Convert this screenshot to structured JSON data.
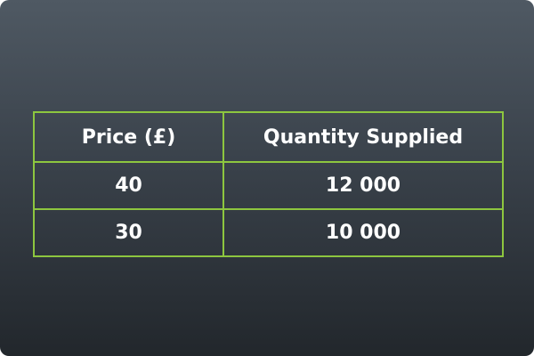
{
  "chart_data": {
    "type": "table",
    "columns": [
      "Price (£)",
      "Quantity Supplied"
    ],
    "rows": [
      [
        "40",
        "12 000"
      ],
      [
        "30",
        "10 000"
      ]
    ]
  },
  "colors": {
    "border": "#8dc63f",
    "text": "#ffffff",
    "background_top": "#4f5963",
    "background_bottom": "#22272c"
  }
}
